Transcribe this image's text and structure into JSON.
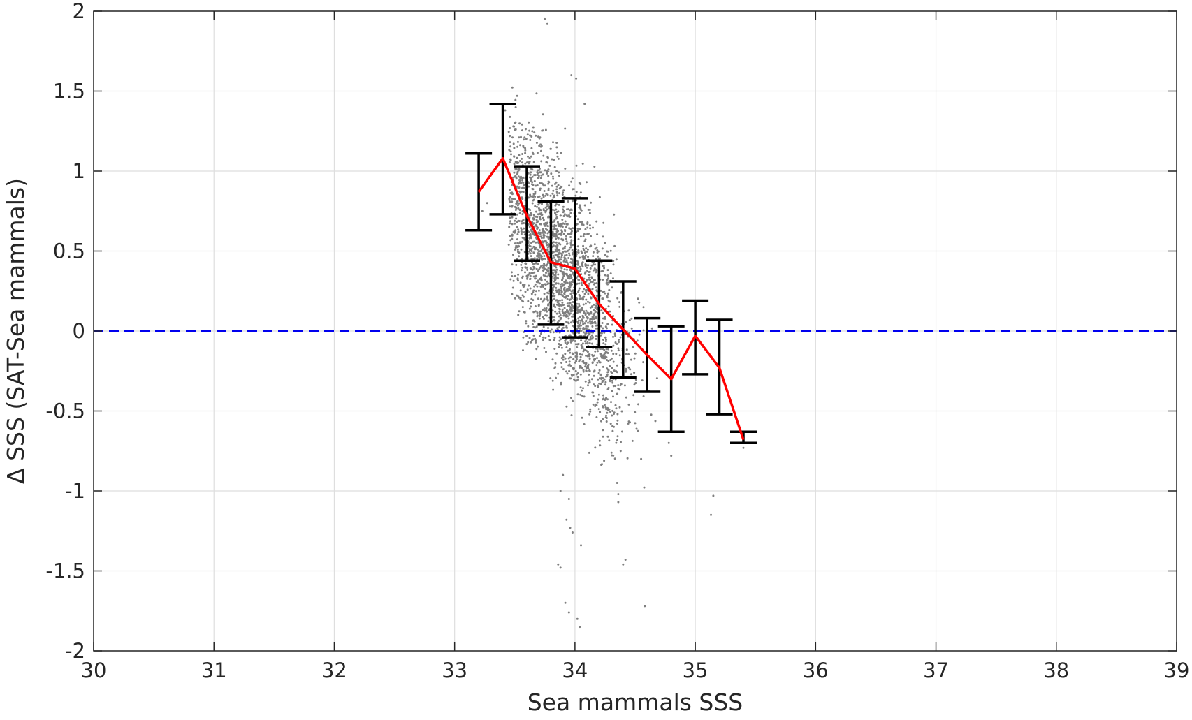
{
  "chart_data": {
    "type": "scatter",
    "title": "",
    "xlabel": "Sea mammals SSS",
    "ylabel": "Δ SSS (SAT-Sea mammals)",
    "xlim": [
      30,
      39
    ],
    "ylim": [
      -2,
      2
    ],
    "xticks": [
      "30",
      "31",
      "32",
      "33",
      "34",
      "35",
      "36",
      "37",
      "38",
      "39"
    ],
    "yticks": [
      "2",
      "1.5",
      "1",
      "0.5",
      "0",
      "-0.5",
      "-1",
      "-1.5",
      "-2"
    ],
    "grid": true,
    "zero_line": {
      "y": 0,
      "color": "#0000ee",
      "style": "dashed"
    },
    "binned_mean": {
      "color": "#ff0000",
      "x": [
        33.2,
        33.4,
        33.6,
        33.8,
        34.0,
        34.2,
        34.4,
        34.6,
        34.8,
        35.0,
        35.2,
        35.4
      ],
      "y": [
        0.87,
        1.08,
        0.72,
        0.43,
        0.39,
        0.17,
        0.01,
        -0.15,
        -0.3,
        -0.03,
        -0.23,
        -0.68
      ],
      "lower": [
        0.63,
        0.73,
        0.44,
        0.04,
        -0.04,
        -0.1,
        -0.29,
        -0.38,
        -0.63,
        -0.27,
        -0.52,
        -0.7
      ],
      "upper": [
        1.11,
        1.42,
        1.03,
        0.81,
        0.83,
        0.44,
        0.31,
        0.08,
        0.03,
        0.19,
        0.07,
        -0.63
      ]
    },
    "scatter": {
      "color": "#7f7f7f",
      "description_points_x_range": [
        33.35,
        35.45
      ],
      "outliers": [
        [
          33.75,
          1.95
        ],
        [
          33.77,
          1.92
        ],
        [
          33.97,
          1.6
        ],
        [
          34.01,
          1.58
        ],
        [
          34.08,
          1.42
        ],
        [
          33.42,
          1.38
        ],
        [
          33.5,
          1.3
        ],
        [
          33.23,
          0.75
        ],
        [
          33.27,
          0.8
        ],
        [
          35.15,
          -1.03
        ],
        [
          35.13,
          -1.15
        ],
        [
          33.88,
          -1.0
        ],
        [
          33.95,
          -1.05
        ],
        [
          34.05,
          -1.34
        ],
        [
          34.42,
          -1.43
        ],
        [
          34.4,
          -1.46
        ],
        [
          34.58,
          -1.72
        ],
        [
          33.86,
          -1.46
        ],
        [
          33.88,
          -1.48
        ],
        [
          33.95,
          -1.76
        ],
        [
          34.02,
          -1.8
        ],
        [
          34.04,
          -1.85
        ],
        [
          33.92,
          -1.7
        ],
        [
          34.38,
          -0.75
        ],
        [
          34.35,
          -0.95
        ],
        [
          34.36,
          -1.02
        ],
        [
          34.55,
          -0.8
        ],
        [
          34.36,
          -1.07
        ],
        [
          33.9,
          -0.9
        ],
        [
          33.93,
          -1.18
        ],
        [
          33.96,
          -1.23
        ],
        [
          33.98,
          -1.26
        ],
        [
          34.8,
          -0.78
        ],
        [
          34.78,
          -0.7
        ],
        [
          35.4,
          -0.73
        ]
      ]
    }
  }
}
